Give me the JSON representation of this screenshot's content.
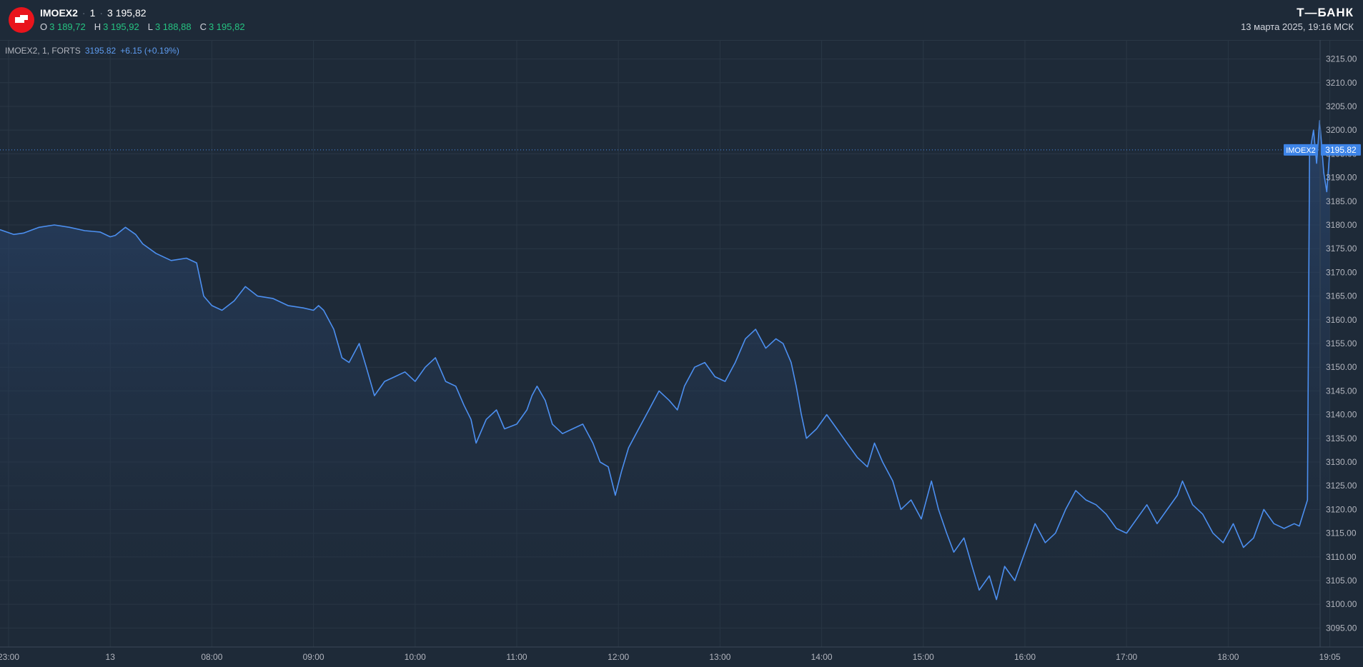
{
  "header": {
    "symbol": "IMOEX2",
    "interval": "1",
    "last": "3 195,82",
    "ohlc": [
      {
        "key": "O",
        "value": "3 189,72"
      },
      {
        "key": "H",
        "value": "3 195,92"
      },
      {
        "key": "L",
        "value": "3 188,88"
      },
      {
        "key": "C",
        "value": "3 195,82"
      }
    ],
    "brand": "Т—БАНК",
    "datetime": "13 марта 2025, 19:16 МСК"
  },
  "legend": {
    "series": "IMOEX2, 1, FORTS",
    "price": "3195.82",
    "change": "+6.15 (+0.19%)"
  },
  "colors": {
    "background": "#1e2a38",
    "line": "#4c8ff0",
    "up": "#26c281",
    "grid": "#2a3745",
    "badge": "#3d84e8"
  },
  "chart_data": {
    "type": "area",
    "y_range": [
      3091,
      3219
    ],
    "y_ticks": [
      3095,
      3100,
      3105,
      3110,
      3115,
      3120,
      3125,
      3130,
      3135,
      3140,
      3145,
      3150,
      3155,
      3160,
      3165,
      3170,
      3175,
      3180,
      3185,
      3190,
      3195,
      3200,
      3205,
      3210,
      3215
    ],
    "x_ticks": [
      {
        "label": "23:00",
        "t": 0
      },
      {
        "label": "13",
        "t": 1
      },
      {
        "label": "08:00",
        "t": 2
      },
      {
        "label": "09:00",
        "t": 3
      },
      {
        "label": "10:00",
        "t": 4
      },
      {
        "label": "11:00",
        "t": 5
      },
      {
        "label": "12:00",
        "t": 6
      },
      {
        "label": "13:00",
        "t": 7
      },
      {
        "label": "14:00",
        "t": 8
      },
      {
        "label": "15:00",
        "t": 9
      },
      {
        "label": "16:00",
        "t": 10
      },
      {
        "label": "17:00",
        "t": 11
      },
      {
        "label": "18:00",
        "t": 12
      },
      {
        "label": "19:05",
        "t": 13
      }
    ],
    "last_value": 3195.82,
    "price_label": "3195.82",
    "badge_label": "IMOEX2",
    "points": [
      [
        -0.1,
        3179.0
      ],
      [
        0.05,
        3178.0
      ],
      [
        0.15,
        3178.3
      ],
      [
        0.3,
        3179.5
      ],
      [
        0.45,
        3180.0
      ],
      [
        0.6,
        3179.5
      ],
      [
        0.75,
        3178.8
      ],
      [
        0.9,
        3178.5
      ],
      [
        1.0,
        3177.5
      ],
      [
        1.05,
        3177.8
      ],
      [
        1.15,
        3179.5
      ],
      [
        1.25,
        3178.0
      ],
      [
        1.32,
        3176.0
      ],
      [
        1.45,
        3174.0
      ],
      [
        1.6,
        3172.5
      ],
      [
        1.75,
        3173.0
      ],
      [
        1.85,
        3172.0
      ],
      [
        1.92,
        3165.0
      ],
      [
        2.0,
        3163.0
      ],
      [
        2.1,
        3162.0
      ],
      [
        2.22,
        3164.0
      ],
      [
        2.33,
        3167.0
      ],
      [
        2.45,
        3165.0
      ],
      [
        2.6,
        3164.5
      ],
      [
        2.75,
        3163.0
      ],
      [
        2.9,
        3162.5
      ],
      [
        3.0,
        3162.0
      ],
      [
        3.05,
        3163.0
      ],
      [
        3.1,
        3162.0
      ],
      [
        3.2,
        3158.0
      ],
      [
        3.28,
        3152.0
      ],
      [
        3.35,
        3151.0
      ],
      [
        3.45,
        3155.0
      ],
      [
        3.52,
        3150.0
      ],
      [
        3.6,
        3144.0
      ],
      [
        3.7,
        3147.0
      ],
      [
        3.8,
        3148.0
      ],
      [
        3.9,
        3149.0
      ],
      [
        4.0,
        3147.0
      ],
      [
        4.1,
        3150.0
      ],
      [
        4.2,
        3152.0
      ],
      [
        4.3,
        3147.0
      ],
      [
        4.4,
        3146.0
      ],
      [
        4.48,
        3142.0
      ],
      [
        4.55,
        3139.0
      ],
      [
        4.6,
        3134.0
      ],
      [
        4.7,
        3139.0
      ],
      [
        4.8,
        3141.0
      ],
      [
        4.88,
        3137.0
      ],
      [
        5.0,
        3138.0
      ],
      [
        5.1,
        3141.0
      ],
      [
        5.15,
        3144.0
      ],
      [
        5.2,
        3146.0
      ],
      [
        5.28,
        3143.0
      ],
      [
        5.35,
        3138.0
      ],
      [
        5.45,
        3136.0
      ],
      [
        5.55,
        3137.0
      ],
      [
        5.65,
        3138.0
      ],
      [
        5.75,
        3134.0
      ],
      [
        5.82,
        3130.0
      ],
      [
        5.9,
        3129.0
      ],
      [
        5.97,
        3123.0
      ],
      [
        6.03,
        3128.0
      ],
      [
        6.1,
        3133.0
      ],
      [
        6.2,
        3137.0
      ],
      [
        6.3,
        3141.0
      ],
      [
        6.4,
        3145.0
      ],
      [
        6.5,
        3143.0
      ],
      [
        6.58,
        3141.0
      ],
      [
        6.65,
        3146.0
      ],
      [
        6.75,
        3150.0
      ],
      [
        6.85,
        3151.0
      ],
      [
        6.95,
        3148.0
      ],
      [
        7.05,
        3147.0
      ],
      [
        7.15,
        3151.0
      ],
      [
        7.25,
        3156.0
      ],
      [
        7.35,
        3158.0
      ],
      [
        7.45,
        3154.0
      ],
      [
        7.55,
        3156.0
      ],
      [
        7.62,
        3155.0
      ],
      [
        7.7,
        3151.0
      ],
      [
        7.75,
        3146.0
      ],
      [
        7.8,
        3140.0
      ],
      [
        7.85,
        3135.0
      ],
      [
        7.95,
        3137.0
      ],
      [
        8.05,
        3140.0
      ],
      [
        8.15,
        3137.0
      ],
      [
        8.25,
        3134.0
      ],
      [
        8.35,
        3131.0
      ],
      [
        8.45,
        3129.0
      ],
      [
        8.52,
        3134.0
      ],
      [
        8.6,
        3130.0
      ],
      [
        8.7,
        3126.0
      ],
      [
        8.78,
        3120.0
      ],
      [
        8.88,
        3122.0
      ],
      [
        8.98,
        3118.0
      ],
      [
        9.08,
        3126.0
      ],
      [
        9.15,
        3120.0
      ],
      [
        9.23,
        3115.0
      ],
      [
        9.3,
        3111.0
      ],
      [
        9.4,
        3114.0
      ],
      [
        9.48,
        3108.0
      ],
      [
        9.55,
        3103.0
      ],
      [
        9.65,
        3106.0
      ],
      [
        9.72,
        3101.0
      ],
      [
        9.8,
        3108.0
      ],
      [
        9.9,
        3105.0
      ],
      [
        10.0,
        3111.0
      ],
      [
        10.1,
        3117.0
      ],
      [
        10.2,
        3113.0
      ],
      [
        10.3,
        3115.0
      ],
      [
        10.4,
        3120.0
      ],
      [
        10.5,
        3124.0
      ],
      [
        10.6,
        3122.0
      ],
      [
        10.7,
        3121.0
      ],
      [
        10.8,
        3119.0
      ],
      [
        10.9,
        3116.0
      ],
      [
        11.0,
        3115.0
      ],
      [
        11.1,
        3118.0
      ],
      [
        11.2,
        3121.0
      ],
      [
        11.3,
        3117.0
      ],
      [
        11.4,
        3120.0
      ],
      [
        11.5,
        3123.0
      ],
      [
        11.55,
        3126.0
      ],
      [
        11.65,
        3121.0
      ],
      [
        11.75,
        3119.0
      ],
      [
        11.85,
        3115.0
      ],
      [
        11.95,
        3113.0
      ],
      [
        12.05,
        3117.0
      ],
      [
        12.15,
        3112.0
      ],
      [
        12.25,
        3114.0
      ],
      [
        12.35,
        3120.0
      ],
      [
        12.45,
        3117.0
      ],
      [
        12.55,
        3116.0
      ],
      [
        12.65,
        3117.0
      ],
      [
        12.7,
        3116.5
      ],
      [
        12.78,
        3122.0
      ],
      [
        12.8,
        3195.0
      ],
      [
        12.84,
        3200.0
      ],
      [
        12.87,
        3193.0
      ],
      [
        12.9,
        3202.0
      ],
      [
        12.94,
        3191.0
      ],
      [
        12.97,
        3187.0
      ],
      [
        13.0,
        3195.82
      ]
    ]
  }
}
